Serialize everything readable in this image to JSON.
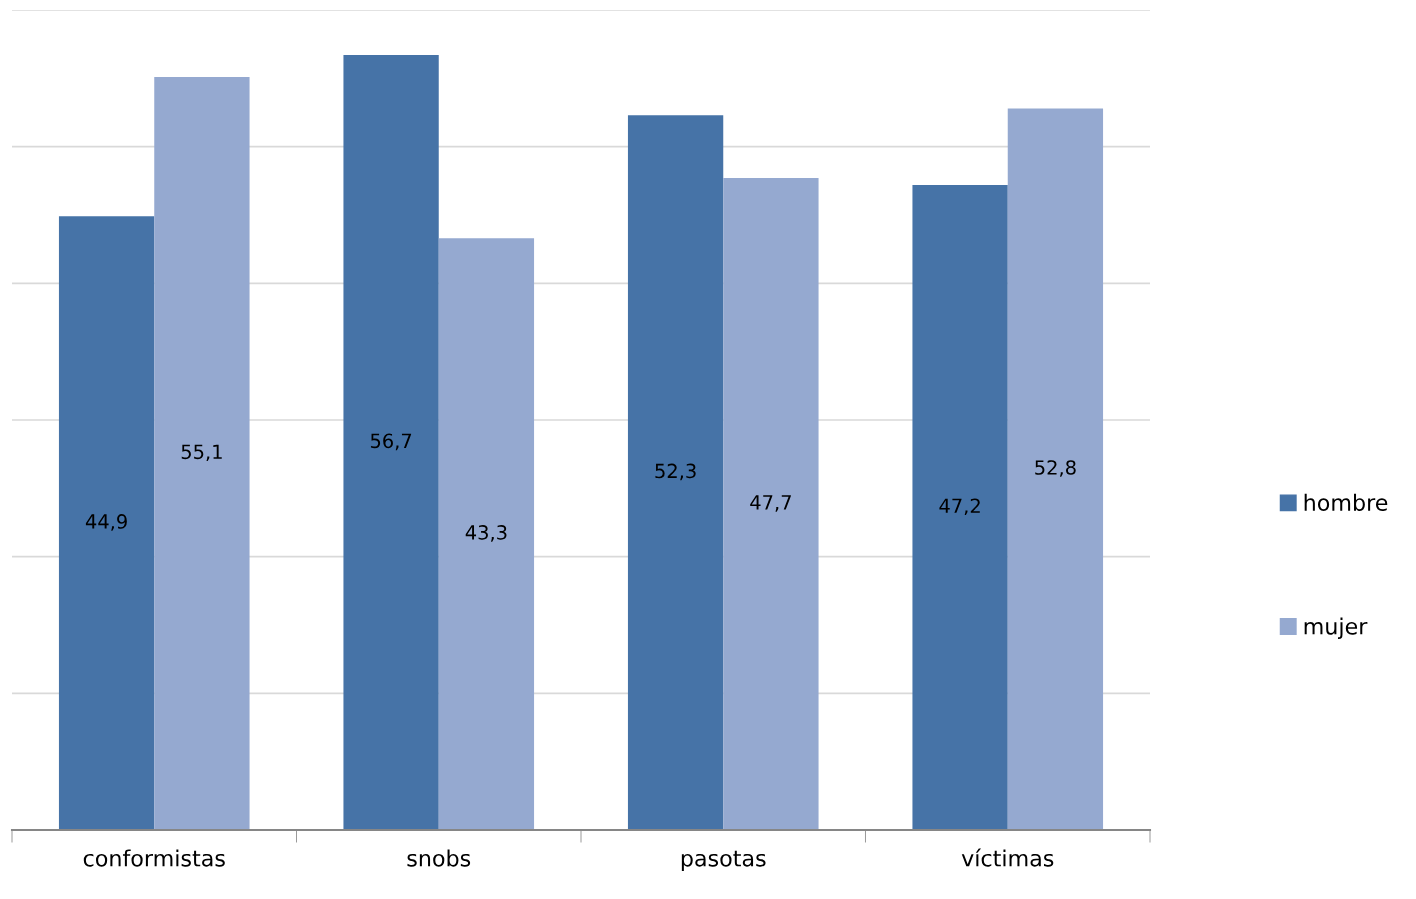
{
  "chart_data": {
    "type": "bar",
    "categories": [
      "conformistas",
      "snobs",
      "pasotas",
      "víctimas"
    ],
    "series": [
      {
        "name": "hombre",
        "color": "#4673a7",
        "values": [
          44.9,
          56.7,
          52.3,
          47.2
        ],
        "value_labels": [
          "44,9",
          "56,7",
          "52,3",
          "47,2"
        ]
      },
      {
        "name": "mujer",
        "color": "#95a9d0",
        "values": [
          55.1,
          43.3,
          47.7,
          52.8
        ],
        "value_labels": [
          "55,1",
          "43,3",
          "47,7",
          "52,8"
        ]
      }
    ],
    "relative": false,
    "ylim": [
      0,
      60
    ],
    "yticks": [
      {
        "value": 0,
        "label": null
      },
      {
        "value": 10,
        "label": null
      },
      {
        "value": 20,
        "label": null
      },
      {
        "value": 30,
        "label": null
      },
      {
        "value": 40,
        "label": null
      },
      {
        "value": 50,
        "label": null
      },
      {
        "value": 60,
        "label": null
      }
    ],
    "tick_labels": "x",
    "grid": "y",
    "legend": "right"
  }
}
